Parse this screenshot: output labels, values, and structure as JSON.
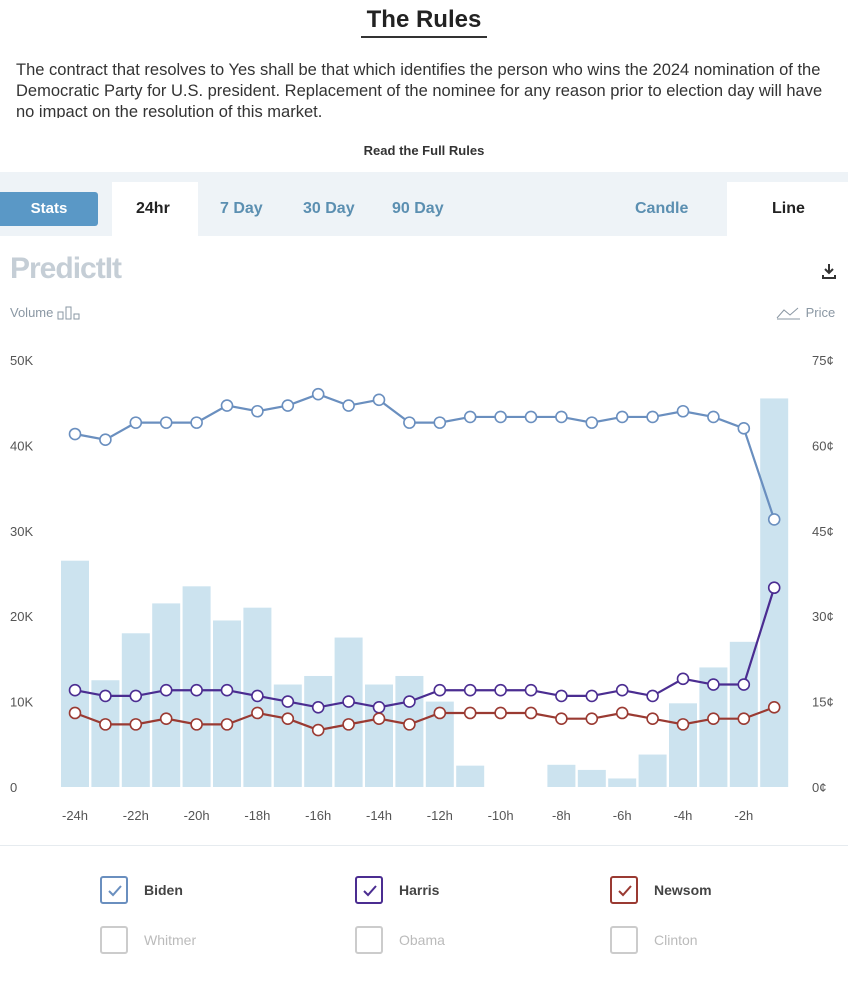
{
  "rules": {
    "title": "The Rules",
    "text": "The contract that resolves to Yes shall be that which identifies the person who wins the 2024 nomination of the Democratic Party for U.S. president. Replacement of the nominee for any reason prior to election day will have no impact on the resolution of this market.",
    "read_full_label": "Read the Full Rules"
  },
  "tabs": {
    "stats": "Stats",
    "ranges": [
      "24hr",
      "7 Day",
      "30 Day",
      "90 Day"
    ],
    "active_range": "24hr",
    "modes": [
      "Candle",
      "Line"
    ],
    "active_mode": "Line"
  },
  "brand": {
    "logo": "PredictIt"
  },
  "axis_labels": {
    "volume": "Volume",
    "price": "Price"
  },
  "legend": [
    {
      "name": "Biden",
      "checked": true,
      "color": "#6a8fbf"
    },
    {
      "name": "Harris",
      "checked": true,
      "color": "#4b2d91"
    },
    {
      "name": "Newsom",
      "checked": true,
      "color": "#9a3a32"
    },
    {
      "name": "Whitmer",
      "checked": false,
      "color": "#bbbbbb"
    },
    {
      "name": "Obama",
      "checked": false,
      "color": "#bbbbbb"
    },
    {
      "name": "Clinton",
      "checked": false,
      "color": "#bbbbbb"
    }
  ],
  "chart_data": {
    "type": "line",
    "title": "",
    "x_tick_labels": [
      "-24h",
      "-22h",
      "-20h",
      "-18h",
      "-16h",
      "-14h",
      "-12h",
      "-10h",
      "-8h",
      "-6h",
      "-4h",
      "-2h"
    ],
    "y_left": {
      "label": "Volume",
      "ticks": [
        "0",
        "10K",
        "20K",
        "30K",
        "40K",
        "50K"
      ],
      "range": [
        0,
        50000
      ]
    },
    "y_right": {
      "label": "Price",
      "ticks": [
        "0¢",
        "15¢",
        "30¢",
        "45¢",
        "60¢",
        "75¢"
      ],
      "range": [
        0,
        75
      ]
    },
    "volume": [
      26500,
      12500,
      18000,
      21500,
      23500,
      19500,
      21000,
      12000,
      13000,
      17500,
      12000,
      13000,
      10000,
      2500,
      0,
      0,
      2600,
      2000,
      1000,
      3800,
      9800,
      14000,
      17000,
      45500
    ],
    "series": [
      {
        "name": "Biden",
        "color": "#6a8fbf",
        "values": [
          62,
          61,
          64,
          64,
          64,
          67,
          66,
          67,
          69,
          67,
          68,
          64,
          64,
          65,
          65,
          65,
          65,
          64,
          65,
          65,
          66,
          65,
          63,
          47
        ]
      },
      {
        "name": "Harris",
        "color": "#4b2d91",
        "values": [
          17,
          16,
          16,
          17,
          17,
          17,
          16,
          15,
          14,
          15,
          14,
          15,
          17,
          17,
          17,
          17,
          16,
          16,
          17,
          16,
          19,
          18,
          18,
          35
        ]
      },
      {
        "name": "Newsom",
        "color": "#9a3a32",
        "values": [
          13,
          11,
          11,
          12,
          11,
          11,
          13,
          12,
          10,
          11,
          12,
          11,
          13,
          13,
          13,
          13,
          12,
          12,
          13,
          12,
          11,
          12,
          12,
          14
        ]
      }
    ]
  }
}
